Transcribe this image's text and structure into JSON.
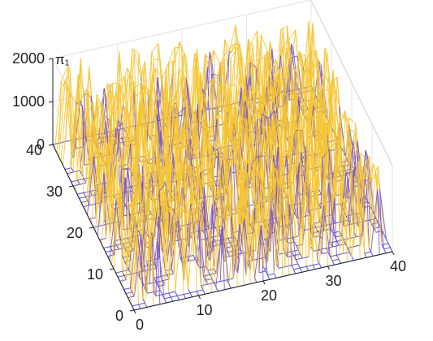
{
  "chart_data": {
    "type": "surface",
    "zlabel": "π₁",
    "x_ticks": [
      0,
      10,
      20,
      30,
      40
    ],
    "y_ticks": [
      0,
      10,
      20,
      30,
      40
    ],
    "z_ticks": [
      0,
      1000,
      2000
    ],
    "xlim": [
      0,
      40
    ],
    "ylim": [
      0,
      40
    ],
    "zlim": [
      0,
      2000
    ],
    "grid_size": [
      41,
      41
    ],
    "peak_value_range": [
      1200,
      2000
    ],
    "colors": {
      "mesh_low": "#3a3ad8",
      "mesh_mid": "#7a54c8",
      "mesh_high": "#f4c430",
      "axes": "#222222",
      "box": "#cfcfcf"
    },
    "grid": true
  }
}
